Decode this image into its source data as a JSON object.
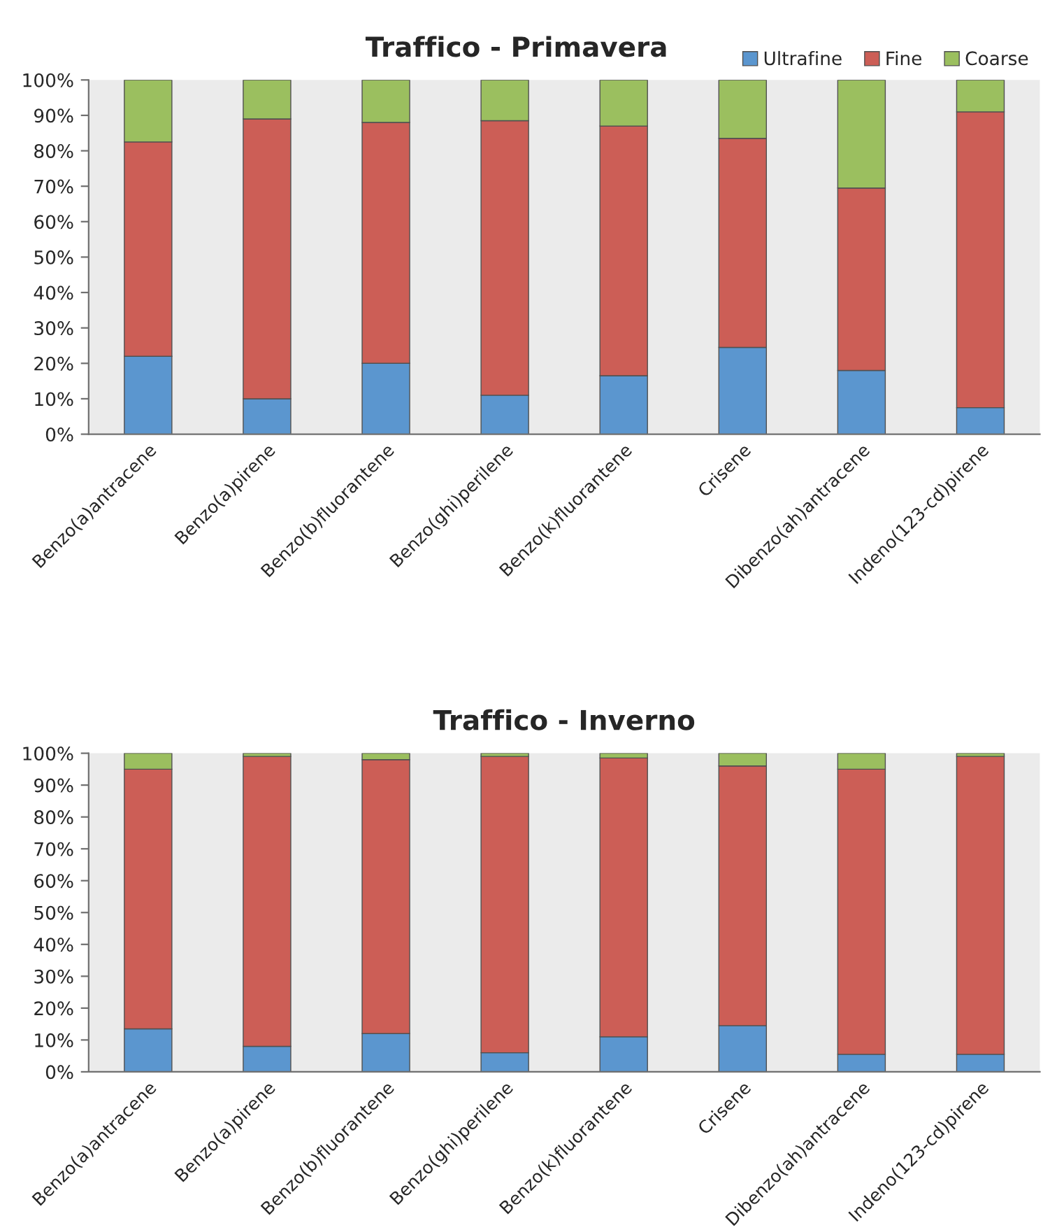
{
  "chart_data": [
    {
      "type": "bar",
      "title": "Traffico - Primavera",
      "stacked": true,
      "legend": "top right",
      "grid": false,
      "categories": [
        "Benzo(a)antracene",
        "Benzo(a)pirene",
        "Benzo(b)fluorantene",
        "Benzo(ghi)perilene",
        "Benzo(k)fluorantene",
        "Crisene",
        "Dibenzo(ah)antracene",
        "Indeno(123-cd)pirene"
      ],
      "series": [
        {
          "name": "Ultrafine",
          "color": "#5b96cf",
          "values": [
            22,
            10,
            20,
            11,
            16.5,
            24.5,
            18,
            7.5
          ]
        },
        {
          "name": "Fine",
          "color": "#cc5e56",
          "values": [
            60.5,
            79,
            68,
            77.5,
            70.5,
            59,
            51.5,
            83.5
          ]
        },
        {
          "name": "Coarse",
          "color": "#9bbf5f",
          "values": [
            17.5,
            11,
            12,
            11.5,
            13,
            16.5,
            30.5,
            9
          ]
        }
      ],
      "ylim": [
        0,
        100
      ],
      "yticks": [
        {
          "value": 0,
          "label": "0%"
        },
        {
          "value": 10,
          "label": "10%"
        },
        {
          "value": 20,
          "label": "20%"
        },
        {
          "value": 30,
          "label": "30%"
        },
        {
          "value": 40,
          "label": "40%"
        },
        {
          "value": 50,
          "label": "50%"
        },
        {
          "value": 60,
          "label": "60%"
        },
        {
          "value": 70,
          "label": "70%"
        },
        {
          "value": 80,
          "label": "80%"
        },
        {
          "value": 90,
          "label": "90%"
        },
        {
          "value": 100,
          "label": "100%"
        }
      ]
    },
    {
      "type": "bar",
      "title": "Traffico - Inverno",
      "stacked": true,
      "grid": false,
      "categories": [
        "Benzo(a)antracene",
        "Benzo(a)pirene",
        "Benzo(b)fluorantene",
        "Benzo(ghi)perilene",
        "Benzo(k)fluorantene",
        "Crisene",
        "Dibenzo(ah)antracene",
        "Indeno(123-cd)pirene"
      ],
      "series": [
        {
          "color": "#5b96cf",
          "values": [
            13.5,
            8,
            12,
            6,
            11,
            14.5,
            5.5,
            5.5
          ]
        },
        {
          "color": "#cc5e56",
          "values": [
            81.5,
            91,
            86,
            93,
            87.5,
            81.5,
            89.5,
            93.5
          ]
        },
        {
          "color": "#9bbf5f",
          "values": [
            5,
            1,
            2,
            1,
            1.5,
            4,
            5,
            1
          ]
        }
      ],
      "ylim": [
        0,
        100
      ],
      "yticks": [
        {
          "value": 0,
          "label": "0%"
        },
        {
          "value": 10,
          "label": "10%"
        },
        {
          "value": 20,
          "label": "20%"
        },
        {
          "value": 30,
          "label": "30%"
        },
        {
          "value": 40,
          "label": "40%"
        },
        {
          "value": 50,
          "label": "50%"
        },
        {
          "value": 60,
          "label": "60%"
        },
        {
          "value": 70,
          "label": "70%"
        },
        {
          "value": 80,
          "label": "80%"
        },
        {
          "value": 90,
          "label": "90%"
        },
        {
          "value": 100,
          "label": "100%"
        }
      ]
    }
  ]
}
